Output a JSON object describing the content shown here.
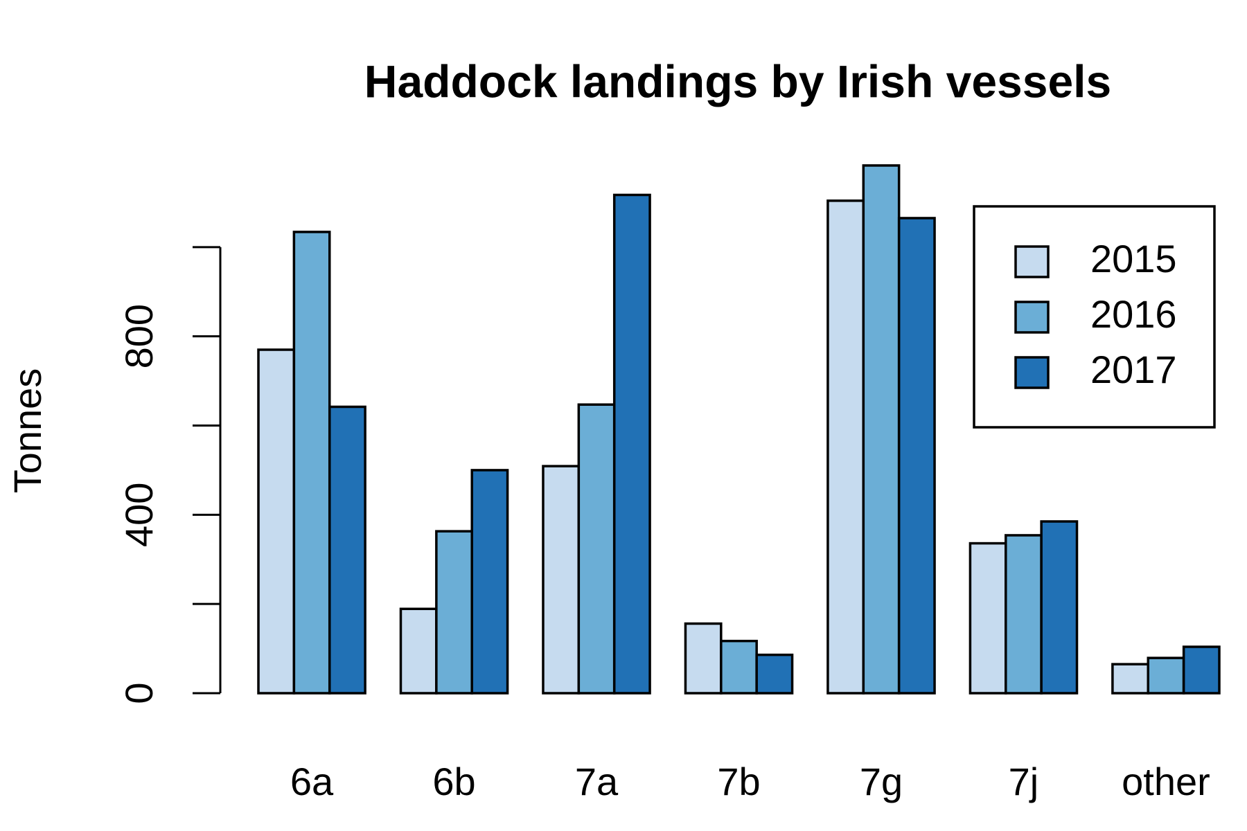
{
  "chart_data": {
    "type": "bar",
    "title": "Haddock landings by Irish vessels",
    "y_label": "Tonnes",
    "categories": [
      "6a",
      "6b",
      "7a",
      "7b",
      "7g",
      "7j",
      "other"
    ],
    "series": [
      {
        "name": "2015",
        "color": "#c6dbef",
        "values": [
          770,
          189,
          509,
          156,
          1104,
          336,
          65
        ]
      },
      {
        "name": "2016",
        "color": "#6baed6",
        "values": [
          1034,
          363,
          647,
          117,
          1183,
          354,
          79
        ]
      },
      {
        "name": "2017",
        "color": "#2171b5",
        "values": [
          642,
          500,
          1117,
          86,
          1065,
          385,
          104
        ]
      }
    ],
    "ylim": [
      0,
      1200
    ],
    "yticks": [
      0,
      200,
      400,
      600,
      800,
      1000
    ]
  }
}
